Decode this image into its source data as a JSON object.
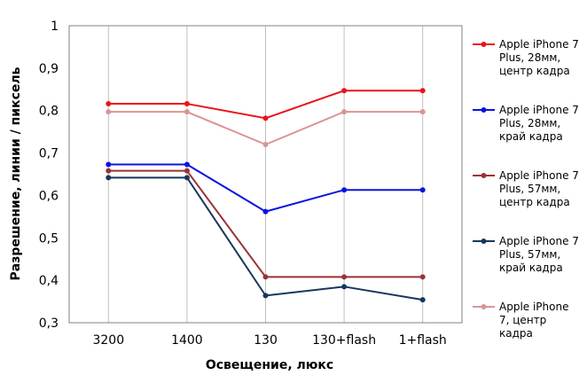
{
  "chart_data": {
    "type": "line",
    "categories": [
      "3200",
      "1400",
      "130",
      "130+flash",
      "1+flash"
    ],
    "xlabel": "Освещение,  люкс",
    "ylabel": "Разрешение,  линии / пиксель",
    "ylim": [
      0.3,
      1
    ],
    "yticks": [
      "0,3",
      "0,4",
      "0,5",
      "0,6",
      "0,7",
      "0,8",
      "0,9",
      "1"
    ],
    "grid": "vertical",
    "legend_position": "right",
    "series": [
      {
        "name": "Apple iPhone 7 Plus, 28мм, центр кадра",
        "legend_lines": [
          "Apple iPhone 7",
          "Plus, 28мм,",
          "центр кадра"
        ],
        "color": "#e8141b",
        "values": [
          0.816,
          0.816,
          0.782,
          0.847,
          0.847
        ]
      },
      {
        "name": "Apple iPhone 7 Plus, 28мм, край кадра",
        "legend_lines": [
          "Apple iPhone 7",
          "Plus, 28мм,",
          "край кадра"
        ],
        "color": "#0b14e0",
        "values": [
          0.673,
          0.673,
          0.562,
          0.613,
          0.613
        ]
      },
      {
        "name": "Apple iPhone 7 Plus, 57мм, центр кадра",
        "legend_lines": [
          "Apple iPhone 7",
          "Plus, 57мм,",
          "центр кадра"
        ],
        "color": "#9a3236",
        "values": [
          0.658,
          0.658,
          0.408,
          0.408,
          0.408
        ]
      },
      {
        "name": "Apple iPhone 7 Plus, 57мм, край кадра",
        "legend_lines": [
          "Apple iPhone 7",
          "Plus, 57мм,",
          "край кадра"
        ],
        "color": "#17375e",
        "values": [
          0.642,
          0.642,
          0.364,
          0.385,
          0.354
        ]
      },
      {
        "name": "Apple iPhone 7, центр кадра",
        "legend_lines": [
          "Apple iPhone",
          "7, центр",
          "кадра"
        ],
        "color": "#d99594",
        "values": [
          0.797,
          0.797,
          0.72,
          0.797,
          0.797
        ]
      }
    ]
  }
}
